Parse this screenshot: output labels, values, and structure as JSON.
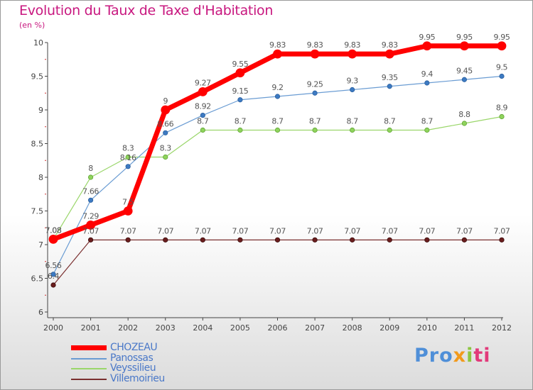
{
  "chart_data": {
    "type": "line",
    "title": "Evolution du Taux de Taxe d'Habitation",
    "unit": "(en %)",
    "x": [
      "2000",
      "2001",
      "2002",
      "2003",
      "2004",
      "2005",
      "2006",
      "2007",
      "2008",
      "2009",
      "2010",
      "2011",
      "2012"
    ],
    "ylim": [
      6,
      10
    ],
    "yticks": [
      "6",
      "6.5",
      "7",
      "7.5",
      "8",
      "8.5",
      "9",
      "9.5",
      "10"
    ],
    "grid": false,
    "legend_position": "bottom-left",
    "series": [
      {
        "name": "CHOZEAU",
        "color": "#ff0000",
        "values": [
          7.08,
          7.29,
          7.5,
          9.0,
          9.27,
          9.55,
          9.83,
          9.83,
          9.83,
          9.83,
          9.95,
          9.95,
          9.95
        ],
        "labels": [
          "7.08",
          "7.29",
          "7.5",
          "9",
          "9.27",
          "9.55",
          "9.83",
          "9.83",
          "9.83",
          "9.83",
          "9.95",
          "9.95",
          "9.95"
        ]
      },
      {
        "name": "Panossas",
        "color": "#6a9cd3",
        "values": [
          6.56,
          7.66,
          8.16,
          8.66,
          8.92,
          9.15,
          9.2,
          9.25,
          9.3,
          9.35,
          9.4,
          9.45,
          9.5
        ],
        "labels": [
          "6.56",
          "7.66",
          "8.16",
          "8.66",
          "8.92",
          "9.15",
          "9.2",
          "9.25",
          "9.3",
          "9.35",
          "9.4",
          "9.45",
          "9.5"
        ]
      },
      {
        "name": "Veyssilieu",
        "color": "#9ad66a",
        "values": [
          7.08,
          8.0,
          8.3,
          8.3,
          8.7,
          8.7,
          8.7,
          8.7,
          8.7,
          8.7,
          8.7,
          8.8,
          8.9
        ],
        "labels": [
          "7.08",
          "8",
          "8.3",
          "8.3",
          "8.7",
          "8.7",
          "8.7",
          "8.7",
          "8.7",
          "8.7",
          "8.7",
          "8.8",
          "8.9"
        ]
      },
      {
        "name": "Villemoirieu",
        "color": "#7a2f2f",
        "values": [
          6.4,
          7.07,
          7.07,
          7.07,
          7.07,
          7.07,
          7.07,
          7.07,
          7.07,
          7.07,
          7.07,
          7.07,
          7.07
        ],
        "labels": [
          "6.4",
          "7.07",
          "7.07",
          "7.07",
          "7.07",
          "7.07",
          "7.07",
          "7.07",
          "7.07",
          "7.07",
          "7.07",
          "7.07",
          "7.07"
        ]
      }
    ]
  },
  "legend": [
    "CHOZEAU",
    "Panossas",
    "Veyssilieu",
    "Villemoirieu"
  ],
  "brand": {
    "p1": "Pro",
    "p2": "x",
    "p3": "i",
    "p4": "ti"
  }
}
